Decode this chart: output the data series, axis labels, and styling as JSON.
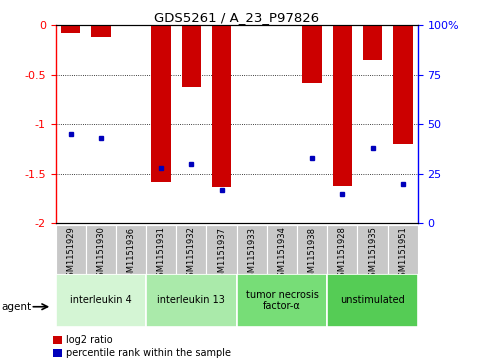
{
  "title": "GDS5261 / A_23_P97826",
  "samples": [
    "GSM1151929",
    "GSM1151930",
    "GSM1151936",
    "GSM1151931",
    "GSM1151932",
    "GSM1151937",
    "GSM1151933",
    "GSM1151934",
    "GSM1151938",
    "GSM1151928",
    "GSM1151935",
    "GSM1151951"
  ],
  "log2_ratio": [
    -0.08,
    -0.12,
    0.0,
    -1.58,
    -0.62,
    -1.63,
    0.0,
    0.0,
    -0.58,
    -1.62,
    -0.35,
    -1.2
  ],
  "percentile": [
    45,
    43,
    null,
    28,
    30,
    17,
    null,
    null,
    33,
    15,
    38,
    20
  ],
  "agents": [
    {
      "label": "interleukin 4",
      "start": 0,
      "end": 3,
      "color": "#d4f5d4"
    },
    {
      "label": "interleukin 13",
      "start": 3,
      "end": 6,
      "color": "#aaeaaa"
    },
    {
      "label": "tumor necrosis\nfactor-α",
      "start": 6,
      "end": 9,
      "color": "#77dd77"
    },
    {
      "label": "unstimulated",
      "start": 9,
      "end": 12,
      "color": "#55cc55"
    }
  ],
  "ylim_left": [
    -2.0,
    0.0
  ],
  "yticks_left": [
    0,
    -0.5,
    -1.0,
    -1.5,
    -2.0
  ],
  "ytick_labels_left": [
    "0",
    "-0.5",
    "-1",
    "-1.5",
    "-2"
  ],
  "ylim_right": [
    0,
    100
  ],
  "yticks_right": [
    0,
    25,
    50,
    75,
    100
  ],
  "ytick_labels_right": [
    "0",
    "25",
    "50",
    "75",
    "100%"
  ],
  "bar_color": "#cc0000",
  "percentile_color": "#0000bb",
  "bg_color": "#c8c8c8",
  "legend_red": "log2 ratio",
  "legend_blue": "percentile rank within the sample"
}
